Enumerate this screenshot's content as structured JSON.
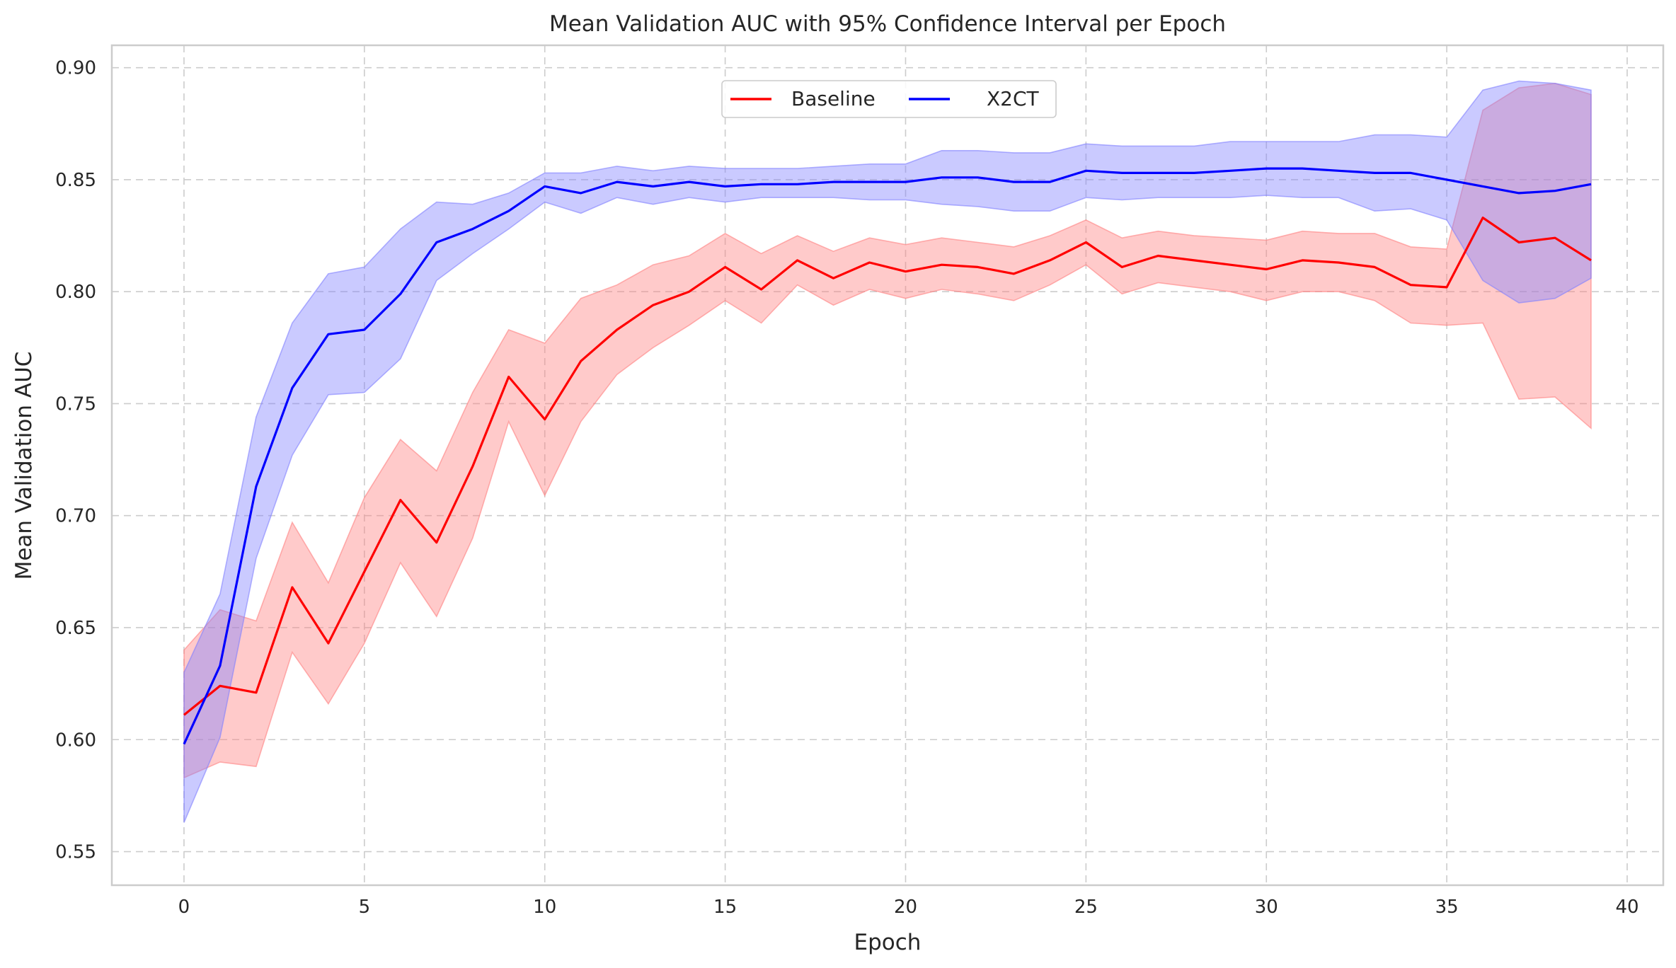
{
  "chart_data": {
    "type": "line",
    "title": "Mean Validation AUC with 95% Confidence Interval per Epoch",
    "xlabel": "Epoch",
    "ylabel": "Mean Validation AUC",
    "xlim": [
      -2,
      41
    ],
    "ylim": [
      0.535,
      0.91
    ],
    "xticks": [
      0,
      5,
      10,
      15,
      20,
      25,
      30,
      35,
      40
    ],
    "yticks": [
      0.55,
      0.6,
      0.65,
      0.7,
      0.75,
      0.8,
      0.85,
      0.9
    ],
    "ytick_labels": [
      "0.55",
      "0.60",
      "0.65",
      "0.70",
      "0.75",
      "0.80",
      "0.85",
      "0.90"
    ],
    "grid": true,
    "legend": "top-center",
    "x": [
      0,
      1,
      2,
      3,
      4,
      5,
      6,
      7,
      8,
      9,
      10,
      11,
      12,
      13,
      14,
      15,
      16,
      17,
      18,
      19,
      20,
      21,
      22,
      23,
      24,
      25,
      26,
      27,
      28,
      29,
      30,
      31,
      32,
      33,
      34,
      35,
      36,
      37,
      38,
      39
    ],
    "series": [
      {
        "name": "Baseline",
        "color": "#ff0000",
        "band_color": "#ff8080",
        "values": [
          0.611,
          0.624,
          0.621,
          0.668,
          0.643,
          0.675,
          0.707,
          0.688,
          0.722,
          0.762,
          0.743,
          0.769,
          0.783,
          0.794,
          0.8,
          0.811,
          0.801,
          0.814,
          0.806,
          0.813,
          0.809,
          0.812,
          0.811,
          0.808,
          0.814,
          0.822,
          0.811,
          0.816,
          0.814,
          0.812,
          0.81,
          0.814,
          0.813,
          0.811,
          0.803,
          0.802,
          0.833,
          0.822,
          0.824,
          0.814
        ],
        "lower": [
          0.583,
          0.59,
          0.588,
          0.639,
          0.616,
          0.643,
          0.679,
          0.655,
          0.69,
          0.742,
          0.709,
          0.742,
          0.763,
          0.775,
          0.785,
          0.796,
          0.786,
          0.803,
          0.794,
          0.801,
          0.797,
          0.801,
          0.799,
          0.796,
          0.803,
          0.812,
          0.799,
          0.804,
          0.802,
          0.8,
          0.796,
          0.8,
          0.8,
          0.796,
          0.786,
          0.785,
          0.786,
          0.752,
          0.753,
          0.739
        ],
        "upper": [
          0.64,
          0.658,
          0.653,
          0.697,
          0.67,
          0.708,
          0.734,
          0.72,
          0.755,
          0.783,
          0.777,
          0.797,
          0.803,
          0.812,
          0.816,
          0.826,
          0.817,
          0.825,
          0.818,
          0.824,
          0.821,
          0.824,
          0.822,
          0.82,
          0.825,
          0.832,
          0.824,
          0.827,
          0.825,
          0.824,
          0.823,
          0.827,
          0.826,
          0.826,
          0.82,
          0.819,
          0.881,
          0.891,
          0.893,
          0.888
        ]
      },
      {
        "name": "X2CT",
        "color": "#0000ff",
        "band_color": "#8080ff",
        "values": [
          0.598,
          0.633,
          0.713,
          0.757,
          0.781,
          0.783,
          0.799,
          0.822,
          0.828,
          0.836,
          0.847,
          0.844,
          0.849,
          0.847,
          0.849,
          0.847,
          0.848,
          0.848,
          0.849,
          0.849,
          0.849,
          0.851,
          0.851,
          0.849,
          0.849,
          0.854,
          0.853,
          0.853,
          0.853,
          0.854,
          0.855,
          0.855,
          0.854,
          0.853,
          0.853,
          0.85,
          0.847,
          0.844,
          0.845,
          0.848
        ],
        "lower": [
          0.563,
          0.601,
          0.681,
          0.727,
          0.754,
          0.755,
          0.77,
          0.805,
          0.817,
          0.828,
          0.84,
          0.835,
          0.842,
          0.839,
          0.842,
          0.84,
          0.842,
          0.842,
          0.842,
          0.841,
          0.841,
          0.839,
          0.838,
          0.836,
          0.836,
          0.842,
          0.841,
          0.842,
          0.842,
          0.842,
          0.843,
          0.842,
          0.842,
          0.836,
          0.837,
          0.832,
          0.805,
          0.795,
          0.797,
          0.806
        ],
        "upper": [
          0.63,
          0.665,
          0.744,
          0.786,
          0.808,
          0.811,
          0.828,
          0.84,
          0.839,
          0.844,
          0.853,
          0.853,
          0.856,
          0.854,
          0.856,
          0.855,
          0.855,
          0.855,
          0.856,
          0.857,
          0.857,
          0.863,
          0.863,
          0.862,
          0.862,
          0.866,
          0.865,
          0.865,
          0.865,
          0.867,
          0.867,
          0.867,
          0.867,
          0.87,
          0.87,
          0.869,
          0.89,
          0.894,
          0.893,
          0.89
        ]
      }
    ]
  }
}
